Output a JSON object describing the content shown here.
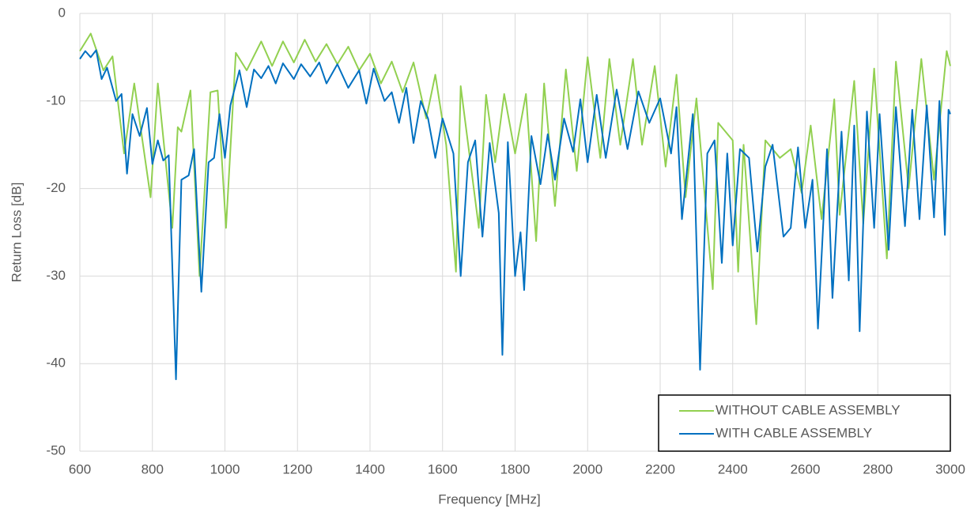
{
  "chart_data": {
    "type": "line",
    "xlabel": "Frequency [MHz]",
    "ylabel": "Return Loss [dB]",
    "xlim": [
      600,
      3000
    ],
    "xticks": [
      600,
      800,
      1000,
      1200,
      1400,
      1600,
      1800,
      2000,
      2200,
      2400,
      2600,
      2800,
      3000
    ],
    "ylim": [
      -50,
      0
    ],
    "yticks": [
      0,
      -10,
      -20,
      -30,
      -40,
      -50
    ],
    "grid": true,
    "legend": "lower right",
    "series": [
      {
        "name": "WITHOUT CABLE ASSEMBLY",
        "color": "#92d050",
        "x": [
          600,
          630,
          665,
          690,
          722,
          750,
          795,
          815,
          855,
          870,
          880,
          905,
          930,
          960,
          980,
          1003,
          1030,
          1060,
          1100,
          1130,
          1160,
          1190,
          1220,
          1250,
          1280,
          1310,
          1340,
          1370,
          1400,
          1430,
          1460,
          1490,
          1520,
          1555,
          1580,
          1610,
          1637,
          1650,
          1700,
          1720,
          1745,
          1770,
          1800,
          1830,
          1858,
          1880,
          1910,
          1940,
          1970,
          2000,
          2035,
          2060,
          2090,
          2125,
          2150,
          2185,
          2215,
          2245,
          2270,
          2300,
          2345,
          2360,
          2400,
          2415,
          2430,
          2465,
          2490,
          2530,
          2560,
          2590,
          2615,
          2645,
          2680,
          2695,
          2735,
          2760,
          2790,
          2825,
          2850,
          2885,
          2920,
          2955,
          2990,
          3000
        ],
        "values": [
          -4.3,
          -2.3,
          -6.5,
          -4.9,
          -16,
          -8,
          -21,
          -8,
          -24.5,
          -13,
          -13.5,
          -8.8,
          -30,
          -9,
          -8.8,
          -24.5,
          -4.5,
          -6.5,
          -3.2,
          -6,
          -3.2,
          -5.6,
          -3,
          -5.5,
          -3.5,
          -5.8,
          -3.8,
          -6.5,
          -4.6,
          -8,
          -5.5,
          -9,
          -5.6,
          -12,
          -7,
          -15,
          -29.5,
          -8.3,
          -24.5,
          -9.3,
          -17,
          -9.2,
          -16,
          -9.2,
          -26,
          -8,
          -22,
          -6.4,
          -18,
          -5,
          -16.5,
          -5.2,
          -15,
          -5.2,
          -15,
          -6,
          -17.5,
          -7,
          -21,
          -9.7,
          -31.5,
          -12.5,
          -14.5,
          -29.5,
          -15,
          -35.5,
          -14.5,
          -16.5,
          -15.5,
          -20.5,
          -12.8,
          -23.5,
          -9.8,
          -23,
          -7.7,
          -24,
          -6.3,
          -28,
          -5.5,
          -20,
          -5.2,
          -19,
          -4.3,
          -6
        ]
      },
      {
        "name": "WITH CABLE ASSEMBLY",
        "color": "#0070c0",
        "x": [
          600,
          615,
          630,
          645,
          660,
          675,
          700,
          715,
          730,
          745,
          765,
          785,
          800,
          815,
          830,
          845,
          865,
          880,
          900,
          915,
          935,
          955,
          970,
          985,
          1000,
          1015,
          1040,
          1060,
          1080,
          1100,
          1120,
          1140,
          1160,
          1190,
          1210,
          1235,
          1260,
          1280,
          1310,
          1340,
          1370,
          1390,
          1410,
          1440,
          1460,
          1480,
          1500,
          1520,
          1540,
          1560,
          1580,
          1600,
          1630,
          1650,
          1670,
          1690,
          1710,
          1730,
          1755,
          1765,
          1780,
          1800,
          1815,
          1825,
          1845,
          1870,
          1890,
          1910,
          1935,
          1960,
          1980,
          2000,
          2025,
          2050,
          2080,
          2110,
          2140,
          2170,
          2200,
          2230,
          2245,
          2260,
          2290,
          2310,
          2330,
          2350,
          2370,
          2385,
          2400,
          2420,
          2445,
          2468,
          2490,
          2510,
          2540,
          2560,
          2580,
          2600,
          2620,
          2635,
          2660,
          2675,
          2700,
          2720,
          2735,
          2750,
          2770,
          2790,
          2805,
          2830,
          2850,
          2875,
          2895,
          2915,
          2935,
          2955,
          2970,
          2985,
          2995,
          3000
        ],
        "values": [
          -5.2,
          -4.3,
          -5,
          -4.2,
          -7.5,
          -6.2,
          -10,
          -9.2,
          -18.3,
          -11.5,
          -14,
          -10.8,
          -17.2,
          -14.5,
          -16.8,
          -16.2,
          -41.8,
          -19,
          -18.5,
          -15.5,
          -31.8,
          -17,
          -16.5,
          -11.5,
          -16.5,
          -10.5,
          -6.5,
          -10.7,
          -6.4,
          -7.4,
          -6,
          -8,
          -5.7,
          -7.5,
          -5.8,
          -7.2,
          -5.6,
          -8,
          -5.8,
          -8.5,
          -6.5,
          -10.3,
          -6.3,
          -10,
          -9,
          -12.5,
          -8.5,
          -14.8,
          -10,
          -12,
          -16.5,
          -12,
          -16,
          -30,
          -17,
          -14.5,
          -25.5,
          -14.8,
          -22.8,
          -39,
          -14.7,
          -30,
          -25,
          -31.6,
          -14,
          -19.5,
          -13.8,
          -19,
          -12,
          -15.8,
          -9.8,
          -17,
          -9.3,
          -16.5,
          -8.7,
          -15.5,
          -8.9,
          -12.5,
          -9.7,
          -16,
          -10.7,
          -23.5,
          -11.5,
          -40.7,
          -16,
          -14.5,
          -28.5,
          -16,
          -26.5,
          -15.5,
          -16.5,
          -27.2,
          -17.5,
          -15,
          -25.5,
          -24.5,
          -15.3,
          -24.5,
          -19,
          -36,
          -15.5,
          -32.5,
          -13.5,
          -30.5,
          -12.8,
          -36.3,
          -11.2,
          -24.5,
          -11.5,
          -27,
          -10.7,
          -24.3,
          -11,
          -23.5,
          -10.5,
          -23.3,
          -10,
          -25.3,
          -11,
          -11.5
        ]
      }
    ]
  }
}
